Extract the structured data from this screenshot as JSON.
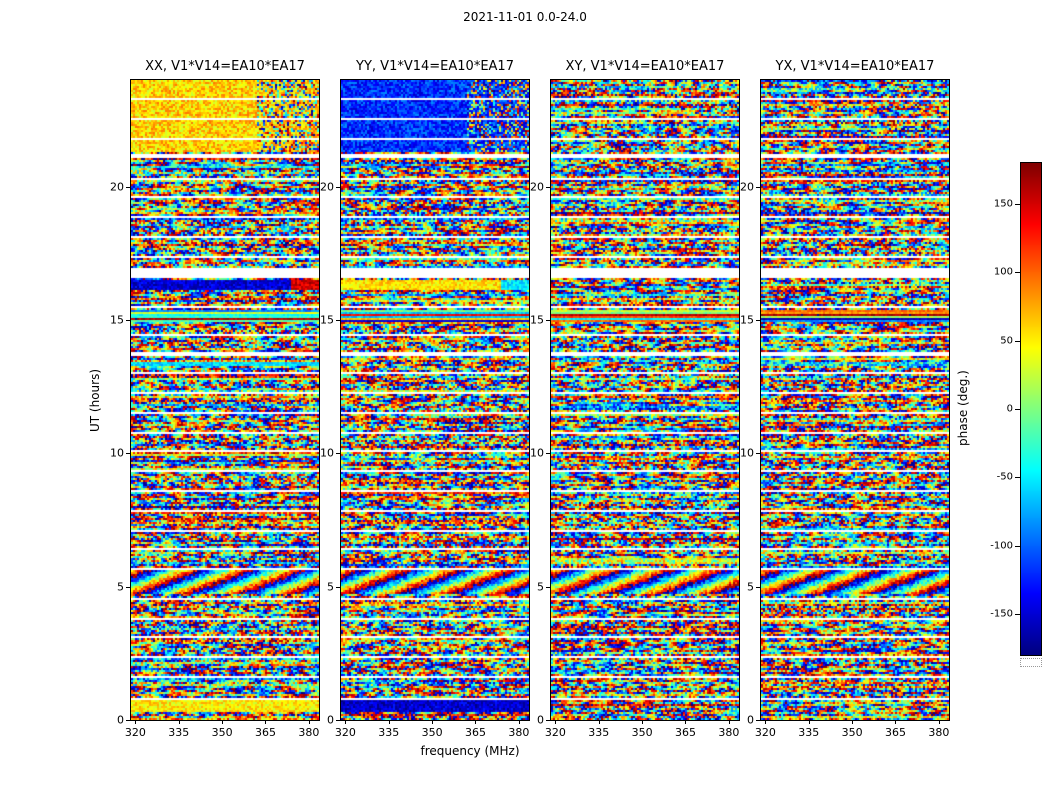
{
  "chart_data": {
    "type": "heatmap",
    "title": "2021-11-01 0.0-24.0",
    "xlabel": "frequency (MHz)",
    "ylabel": "UT (hours)",
    "colorbar_label": "phase (deg.)",
    "colormap": "jet",
    "value_description": "Interferometric visibility phase vs frequency and time for baseline V1*V14=EA10*EA17. Values appear as pseudo-random speckle between -180 and +180 degrees; horizontal white stripes are flagged scan boundaries; a few scans show coherent (calibrated) phase bands.",
    "panels": [
      {
        "id": "XX",
        "title": "XX, V1*V14=EA10*EA17",
        "seed": 101
      },
      {
        "id": "YY",
        "title": "YY, V1*V14=EA10*EA17",
        "seed": 202
      },
      {
        "id": "XY",
        "title": "XY, V1*V14=EA10*EA17",
        "seed": 303
      },
      {
        "id": "YX",
        "title": "YX, V1*V14=EA10*EA17",
        "seed": 404
      }
    ],
    "x_axis": {
      "range": [
        318.5,
        383.5
      ],
      "ticks": [
        320,
        335,
        350,
        365,
        380
      ]
    },
    "y_axis": {
      "range": [
        0,
        24
      ],
      "ticks": [
        0,
        5,
        10,
        15,
        20
      ]
    },
    "colorbar": {
      "range": [
        -180,
        180
      ],
      "ticks": [
        150,
        100,
        50,
        0,
        -50,
        -100,
        -150
      ]
    },
    "time_gaps": [
      [
        0.74,
        0.82
      ],
      [
        1.55,
        1.62
      ],
      [
        2.35,
        2.42
      ],
      [
        3.05,
        3.12
      ],
      [
        3.78,
        3.85
      ],
      [
        4.52,
        4.6
      ],
      [
        5.62,
        5.7
      ],
      [
        6.35,
        6.45
      ],
      [
        7.08,
        7.15
      ],
      [
        7.82,
        7.9
      ],
      [
        8.55,
        8.62
      ],
      [
        9.28,
        9.38
      ],
      [
        10.02,
        10.1
      ],
      [
        10.75,
        10.82
      ],
      [
        11.48,
        11.55
      ],
      [
        12.22,
        12.3
      ],
      [
        12.95,
        13.02
      ],
      [
        13.68,
        13.78
      ],
      [
        14.42,
        14.5
      ],
      [
        15.42,
        15.52
      ],
      [
        16.55,
        16.95
      ],
      [
        17.35,
        17.42
      ],
      [
        18.08,
        18.15
      ],
      [
        18.82,
        18.9
      ],
      [
        19.55,
        19.62
      ],
      [
        20.28,
        20.35
      ],
      [
        21.05,
        21.22
      ],
      [
        21.78,
        21.85
      ],
      [
        22.52,
        22.6
      ],
      [
        23.25,
        23.32
      ]
    ],
    "features": [
      {
        "ut": [
          21.3,
          24.0
        ],
        "type": "coherent",
        "spread": 35,
        "bias": {
          "XX": 60,
          "YY": -120
        },
        "decohere_above_mhz": 362
      },
      {
        "ut": [
          16.15,
          16.5
        ],
        "type": "coherent",
        "spread": 26,
        "bias": {
          "XX": -150,
          "YY": 55
        },
        "right_mhz": 374,
        "bias_right": {
          "XX": 150,
          "YY": -50
        }
      },
      {
        "ut": [
          14.95,
          15.35
        ],
        "type": "striped",
        "spread": 16
      },
      {
        "ut": [
          13.25,
          13.42
        ],
        "type": "coherent",
        "spread": 24,
        "bias": {
          "XX": -55
        }
      },
      {
        "ut": [
          4.7,
          5.6
        ],
        "type": "fringes",
        "slope_deg_per_cell": 14,
        "row_advance_deg": 37,
        "jitter": 45
      },
      {
        "ut": [
          0.3,
          0.72
        ],
        "type": "coherent",
        "spread": 28,
        "bias": {
          "XX": 50,
          "YY": -152
        }
      }
    ]
  }
}
